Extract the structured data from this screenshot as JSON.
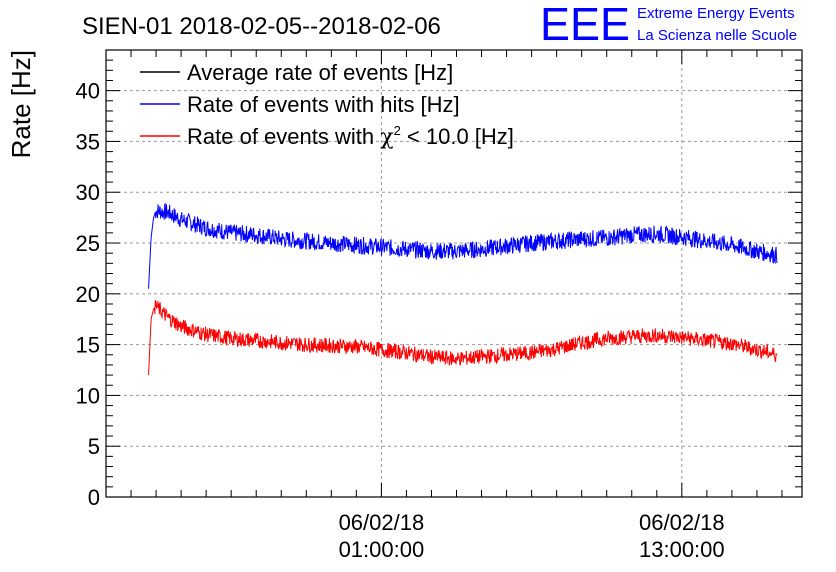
{
  "chart_data": {
    "type": "line",
    "title": "SIEN-01 2018-02-05--2018-02-06",
    "ylabel": "Rate [Hz]",
    "xlabel": "",
    "ylim": [
      0,
      44
    ],
    "xlim_hours": [
      -10.0,
      17.8
    ],
    "y_ticks": [
      0,
      5,
      10,
      15,
      20,
      25,
      30,
      35,
      40
    ],
    "y_tick_labels": [
      "0",
      "5",
      "10",
      "15",
      "20",
      "25",
      "30",
      "35",
      "40"
    ],
    "x_ticks": [
      {
        "hour": 1,
        "date": "06/02/18",
        "time": "01:00:00"
      },
      {
        "hour": 13,
        "date": "06/02/18",
        "time": "13:00:00"
      }
    ],
    "grid": true,
    "legend_position": "top-left",
    "series": [
      {
        "name": "Average rate of events [Hz]",
        "color": "#000000",
        "x": [],
        "values": []
      },
      {
        "name": "Rate of events with hits [Hz]",
        "color": "#0000ff",
        "x": [
          -8.3,
          -8.2,
          -8.1,
          -8.0,
          -7.5,
          -7.0,
          -6.0,
          -5.0,
          -4.0,
          -3.0,
          -2.0,
          -1.0,
          0.0,
          1.0,
          2.0,
          3.0,
          4.0,
          5.0,
          6.0,
          7.0,
          8.0,
          9.0,
          10.0,
          11.0,
          12.0,
          13.0,
          14.0,
          15.0,
          16.0,
          16.8
        ],
        "values": [
          20.5,
          25.5,
          27.5,
          28.2,
          28.0,
          27.3,
          26.5,
          26.0,
          25.8,
          25.4,
          25.2,
          25.0,
          24.8,
          24.6,
          24.4,
          24.2,
          24.2,
          24.4,
          24.7,
          25.0,
          25.2,
          25.4,
          25.5,
          25.8,
          25.9,
          25.6,
          25.2,
          24.8,
          24.2,
          23.8
        ]
      },
      {
        "name": "Rate of events with χ² < 10.0 [Hz]",
        "color": "#ff0000",
        "x": [
          -8.3,
          -8.2,
          -8.1,
          -8.0,
          -7.5,
          -7.0,
          -6.0,
          -5.0,
          -4.0,
          -3.0,
          -2.0,
          -1.0,
          0.0,
          1.0,
          2.0,
          3.0,
          4.0,
          5.0,
          6.0,
          7.0,
          8.0,
          9.0,
          10.0,
          11.0,
          12.0,
          13.0,
          14.0,
          15.0,
          16.0,
          16.8
        ],
        "values": [
          12.0,
          17.5,
          18.5,
          18.8,
          17.6,
          16.8,
          16.0,
          15.6,
          15.4,
          15.2,
          15.0,
          14.9,
          14.8,
          14.5,
          14.2,
          13.8,
          13.6,
          13.8,
          14.0,
          14.2,
          14.6,
          15.2,
          15.6,
          15.8,
          15.9,
          15.7,
          15.4,
          15.1,
          14.5,
          14.0
        ]
      }
    ]
  },
  "legend": {
    "entries": [
      {
        "label": "Average rate of events [Hz]"
      },
      {
        "label": "Rate of events with hits [Hz]"
      },
      {
        "label_pre": "Rate of events with ",
        "chi": "χ",
        "sup": "2",
        "label_post": " < 10.0 [Hz]"
      }
    ]
  },
  "logo": {
    "mark": "EEE",
    "line1": "Extreme Energy Events",
    "line2": "La Scienza nelle Scuole",
    "color": "#0000ff"
  }
}
